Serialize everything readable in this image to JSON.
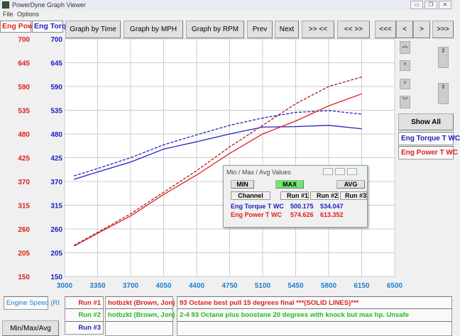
{
  "window": {
    "title": "PowerDyne Graph Viewer",
    "menu": [
      "File",
      "Options"
    ]
  },
  "channels": {
    "power_label": "Eng Powe",
    "torque_label": "Eng Torq"
  },
  "toolbar": {
    "graph_time": "Graph by Time",
    "graph_mph": "Graph by MPH",
    "graph_rpm": "Graph by RPM",
    "prev": "Prev",
    "next": "Next",
    "zoom_in": ">> <<",
    "zoom_out": "<< >>",
    "first": "<<<",
    "back": "<",
    "fwd": ">",
    "last": ">>>"
  },
  "side": {
    "show_all": "Show All",
    "legend": [
      "Eng Torque T WC",
      "Eng Power T WC"
    ],
    "scroll_icons": [
      "triple-up",
      "up",
      "down",
      "triple-down",
      "expand",
      "contract"
    ]
  },
  "colors": {
    "power": "#e02020",
    "torque": "#2020c0",
    "rpm_axis": "#1e7fd0",
    "run2": "#22bb22",
    "run3": "#2020c0"
  },
  "chart_data": {
    "type": "line",
    "xlabel": "Engine Speed (RI",
    "x_ticks": [
      3000,
      3350,
      3700,
      4050,
      4400,
      4750,
      5100,
      5450,
      5800,
      6150,
      6500
    ],
    "xlim": [
      3000,
      6500
    ],
    "y_ticks": [
      700,
      645,
      590,
      535,
      480,
      425,
      370,
      315,
      260,
      205,
      150
    ],
    "ylim": [
      150,
      700
    ],
    "grid": true,
    "x": [
      3100,
      3350,
      3700,
      4050,
      4400,
      4750,
      5100,
      5450,
      5800,
      6150
    ],
    "series": [
      {
        "name": "Eng Torque T WC",
        "run": "Run #1",
        "style": "solid",
        "color": "#2020c0",
        "values": [
          375,
          392,
          415,
          445,
          462,
          480,
          496,
          497,
          500,
          492
        ]
      },
      {
        "name": "Eng Torque T WC",
        "run": "Run #2",
        "style": "dashed",
        "color": "#2020c0",
        "values": [
          383,
          400,
          425,
          455,
          478,
          500,
          517,
          530,
          534,
          526
        ]
      },
      {
        "name": "Eng Power T WC",
        "run": "Run #1",
        "style": "solid",
        "color": "#e02020",
        "values": [
          220,
          250,
          290,
          340,
          385,
          435,
          480,
          510,
          545,
          573
        ]
      },
      {
        "name": "Eng Power T WC",
        "run": "Run #2",
        "style": "dashed",
        "color": "#a02020",
        "values": [
          222,
          252,
          295,
          345,
          395,
          450,
          500,
          550,
          590,
          612
        ]
      }
    ]
  },
  "popup": {
    "title": "Min / Max / Avg Values",
    "min": "MIN",
    "max": "MAX",
    "avg": "AVG",
    "cols": [
      "Channel",
      "Run #1",
      "Run #2",
      "Run #3"
    ],
    "rows": [
      {
        "channel": "Eng Torque T WC",
        "r1": "500.175",
        "r2": "534.047"
      },
      {
        "channel": "Eng Power T WC",
        "r1": "574.626",
        "r2": "613.352"
      }
    ]
  },
  "runs": [
    {
      "label": "Run #1",
      "driver": "hotbzkt (Brown, Jon)",
      "desc": "93 Octane best pull 15 degrees final ***(SOLID LINES)***"
    },
    {
      "label": "Run #2",
      "driver": "hotbzkt (Brown, Jon)",
      "desc": "2-4 93 Octane plus boostane 20 degrees with knock but max hp.  Unsafe"
    },
    {
      "label": "Run #3",
      "driver": "",
      "desc": ""
    }
  ],
  "bottom": {
    "minmax": "Min/Max/Avg"
  }
}
